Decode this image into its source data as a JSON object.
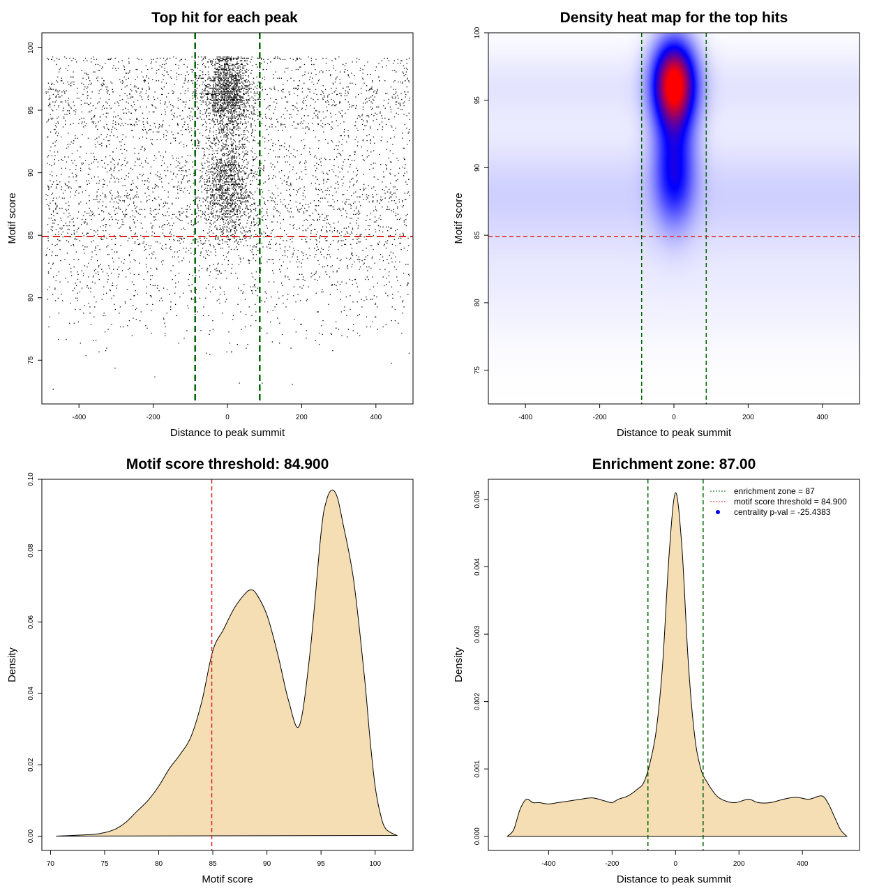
{
  "colors": {
    "green_line": "#006400",
    "red_line": "#dd2222",
    "density_fill": "#f5deb3",
    "heat_low": "#ffffff",
    "heat_mid": "#0000ff",
    "heat_high": "#ff0000",
    "legend_dot": "#0000ff"
  },
  "chart_data": [
    {
      "id": "scatter",
      "type": "scatter",
      "title": "Top hit for each peak",
      "xlabel": "Distance to peak summit",
      "ylabel": "Motif score",
      "xlim": [
        -500,
        500
      ],
      "ylim": [
        71.5,
        101.2
      ],
      "xticks": [
        -400,
        -200,
        0,
        200,
        400
      ],
      "xtick_labels": [
        "-400",
        "-200",
        "0",
        "200",
        "400"
      ],
      "yticks": [
        75,
        80,
        85,
        90,
        95,
        100
      ],
      "ytick_labels": [
        "75",
        "80",
        "85",
        "90",
        "95",
        "100"
      ],
      "vlines": [
        -87,
        87
      ],
      "hline": 84.9,
      "point_distribution": {
        "n_points": 7000,
        "central_fraction": 0.38,
        "central_sd_x": 33,
        "x_range": [
          -490,
          490
        ],
        "score_components": [
          {
            "weight": 0.55,
            "mean": 96.5,
            "sd": 1.6
          },
          {
            "weight": 0.45,
            "mean": 89.0,
            "sd": 2.3
          }
        ],
        "background_components": [
          {
            "weight": 0.45,
            "mean": 88.0,
            "sd": 3.0
          },
          {
            "weight": 0.35,
            "mean": 96.0,
            "sd": 2.0
          },
          {
            "weight": 0.2,
            "mean": 82.0,
            "sd": 3.0
          }
        ],
        "score_max": 99.3
      }
    },
    {
      "id": "heatmap",
      "type": "heatmap",
      "title": "Density heat map for the top hits",
      "xlabel": "Distance to peak summit",
      "ylabel": "Motif score",
      "xlim": [
        -500,
        500
      ],
      "ylim": [
        72.5,
        100
      ],
      "xticks": [
        -400,
        -200,
        0,
        200,
        400
      ],
      "xtick_labels": [
        "-400",
        "-200",
        "0",
        "200",
        "400"
      ],
      "yticks": [
        75,
        80,
        85,
        90,
        95,
        100
      ],
      "ytick_labels": [
        "75",
        "80",
        "85",
        "90",
        "95",
        "100"
      ],
      "vlines": [
        -87,
        87
      ],
      "hline": 84.9,
      "hotspots": [
        {
          "x": 0,
          "y": 96.3,
          "sx": 40,
          "sy": 2.2,
          "w": 1.0
        },
        {
          "x": 0,
          "y": 89.5,
          "sx": 38,
          "sy": 2.6,
          "w": 0.42
        },
        {
          "x": 0,
          "y": 93.0,
          "sx": 40,
          "sy": 2.2,
          "w": 0.12
        }
      ],
      "background_bands": [
        {
          "y": 88.0,
          "sy": 3.0,
          "w": 0.09
        },
        {
          "y": 96.0,
          "sy": 2.0,
          "w": 0.05
        },
        {
          "y": 81.0,
          "sy": 3.0,
          "w": 0.03
        }
      ]
    },
    {
      "id": "score_density",
      "type": "area",
      "title": "Motif score threshold: 84.900",
      "xlabel": "Motif score",
      "ylabel": "Density",
      "xlim": [
        69.2,
        103.5
      ],
      "ylim": [
        -0.004,
        0.1
      ],
      "xticks": [
        70,
        75,
        80,
        85,
        90,
        95,
        100
      ],
      "xtick_labels": [
        "70",
        "75",
        "80",
        "85",
        "90",
        "95",
        "100"
      ],
      "yticks": [
        0,
        0.02,
        0.04,
        0.06,
        0.08,
        0.1
      ],
      "ytick_labels": [
        "0.00",
        "0.02",
        "0.04",
        "0.06",
        "0.08",
        "0.10"
      ],
      "vline": 84.9,
      "x": [
        70.5,
        72,
        74,
        75,
        76,
        77,
        78,
        79,
        80,
        81,
        82,
        83,
        84,
        85,
        86,
        87,
        88,
        88.5,
        89,
        90,
        91,
        92,
        93,
        94,
        95,
        95.5,
        96,
        96.5,
        97,
        98,
        99,
        99.5,
        100,
        100.5,
        101,
        102
      ],
      "y": [
        0,
        0.0002,
        0.0005,
        0.001,
        0.002,
        0.004,
        0.007,
        0.01,
        0.014,
        0.019,
        0.023,
        0.028,
        0.038,
        0.052,
        0.058,
        0.064,
        0.068,
        0.069,
        0.068,
        0.062,
        0.051,
        0.038,
        0.031,
        0.052,
        0.085,
        0.094,
        0.097,
        0.095,
        0.088,
        0.072,
        0.045,
        0.028,
        0.014,
        0.006,
        0.002,
        0.0002
      ]
    },
    {
      "id": "distance_density",
      "type": "area",
      "title": "Enrichment zone: 87.00",
      "xlabel": "Distance to peak summit",
      "ylabel": "Density",
      "xlim": [
        -590,
        580
      ],
      "ylim": [
        -0.00021,
        0.0053
      ],
      "xticks": [
        -400,
        -200,
        0,
        200,
        400
      ],
      "xtick_labels": [
        "-400",
        "-200",
        "0",
        "200",
        "400"
      ],
      "yticks": [
        0,
        0.001,
        0.002,
        0.003,
        0.004,
        0.005
      ],
      "ytick_labels": [
        "0.000",
        "0.001",
        "0.002",
        "0.003",
        "0.004",
        "0.005"
      ],
      "vlines": [
        -87,
        87
      ],
      "x": [
        -530,
        -510,
        -490,
        -470,
        -450,
        -430,
        -400,
        -370,
        -340,
        -300,
        -260,
        -220,
        -200,
        -180,
        -150,
        -120,
        -100,
        -80,
        -60,
        -40,
        -20,
        0,
        20,
        40,
        60,
        80,
        100,
        130,
        160,
        190,
        230,
        260,
        300,
        340,
        380,
        420,
        460,
        480,
        500,
        520,
        540
      ],
      "y": [
        0,
        0.0001,
        0.0004,
        0.00055,
        0.0005,
        0.0005,
        0.00048,
        0.0005,
        0.00052,
        0.00055,
        0.00057,
        0.00052,
        0.0005,
        0.00055,
        0.0006,
        0.0007,
        0.0008,
        0.0011,
        0.0016,
        0.0026,
        0.0042,
        0.0051,
        0.0043,
        0.0026,
        0.0015,
        0.001,
        0.0008,
        0.0006,
        0.00052,
        0.0005,
        0.00055,
        0.0005,
        0.0005,
        0.00055,
        0.00058,
        0.00055,
        0.0006,
        0.0005,
        0.0003,
        0.0001,
        0
      ],
      "legend": [
        {
          "label": "enrichment zone = 87",
          "style": "green-dotted"
        },
        {
          "label": "motif score threshold = 84.900",
          "style": "red-dotted"
        },
        {
          "label": "centrality p-val = -25.4383",
          "style": "blue-dot"
        }
      ]
    }
  ]
}
